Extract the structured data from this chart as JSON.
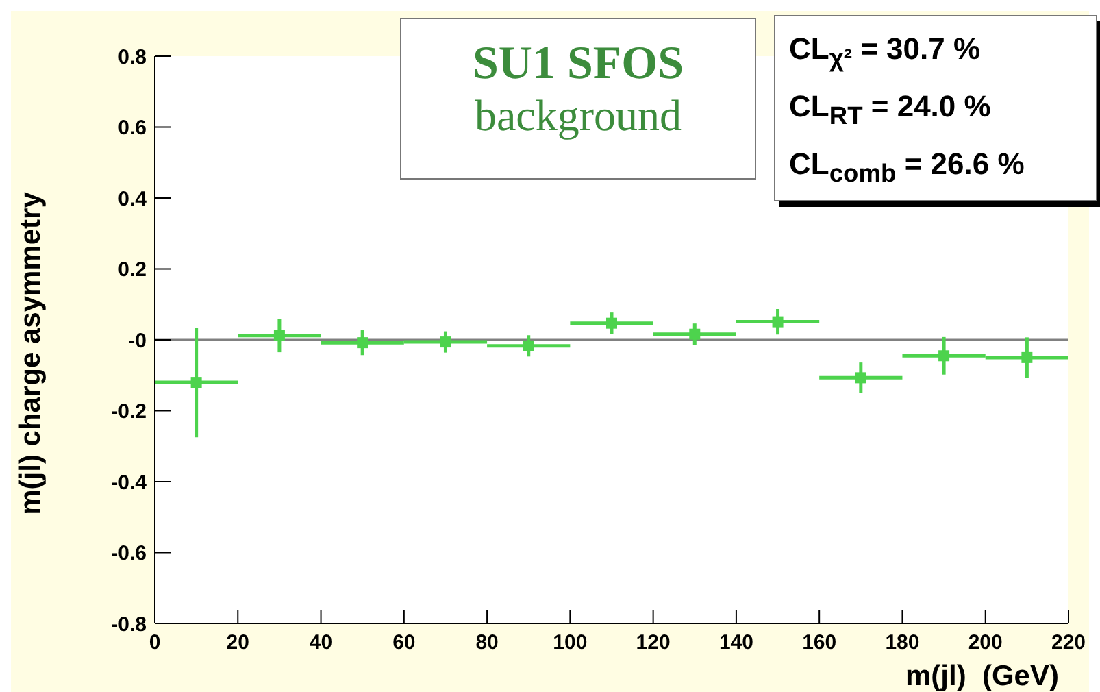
{
  "chart_data": {
    "type": "scatter",
    "title": "SU1 SFOS",
    "subtitle": "background",
    "xlabel": "m(jl)  (GeV)",
    "ylabel": "m(jl) charge asymmetry",
    "x": [
      10,
      30,
      50,
      70,
      90,
      110,
      130,
      150,
      170,
      190,
      210
    ],
    "series": [
      {
        "color": "#4dd34d",
        "values": [
          -0.12,
          0.012,
          -0.008,
          -0.006,
          -0.017,
          0.047,
          0.016,
          0.051,
          -0.107,
          -0.045,
          -0.05
        ],
        "errors": [
          0.155,
          0.047,
          0.035,
          0.03,
          0.03,
          0.03,
          0.03,
          0.036,
          0.043,
          0.053,
          0.057
        ],
        "xerrors": [
          10,
          10,
          10,
          10,
          10,
          10,
          10,
          10,
          10,
          10,
          10
        ]
      }
    ],
    "xlim": [
      0,
      220
    ],
    "xticks": [
      0,
      20,
      40,
      60,
      80,
      100,
      120,
      140,
      160,
      180,
      200,
      220
    ],
    "ylim": [
      -0.8,
      0.8
    ],
    "yticks": [
      -0.8,
      -0.6,
      -0.4,
      -0.2,
      {
        "value": 0,
        "label": "-0"
      },
      0.2,
      0.4,
      0.6,
      0.8
    ],
    "ref_lines": [
      {
        "axis": "y",
        "value": 0,
        "color": "#808080"
      }
    ],
    "annotations": [
      "CL$_{χ²}$ = 30.7 %",
      "CL$_{RT}$ = 24.0 %",
      "CL$_{comb}$ = 26.6 %"
    ],
    "marker": "square",
    "grid": false
  }
}
